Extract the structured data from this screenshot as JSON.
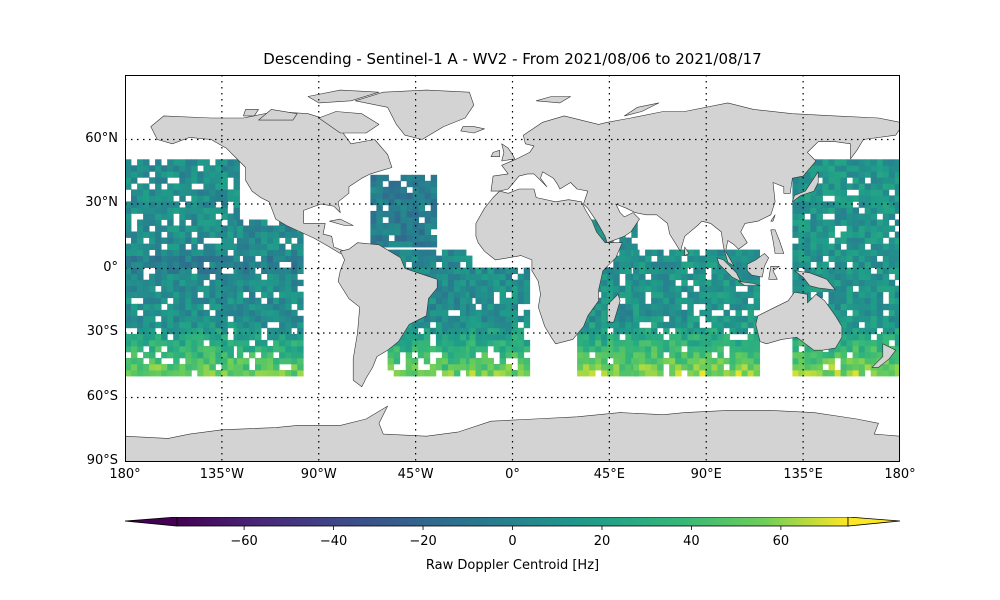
{
  "title": "Descending - Sentinel-1 A - WV2 - From 2021/08/06 to 2021/08/17",
  "map": {
    "projection": "PlateCarree",
    "lon_range": [
      -180,
      180
    ],
    "lat_range": [
      -90,
      90
    ],
    "land_color": "#d3d3d3",
    "coastline_color": "#333333",
    "gridlines": "dotted",
    "lat_ticks": [
      {
        "value": 60,
        "label": "60°N"
      },
      {
        "value": 30,
        "label": "30°N"
      },
      {
        "value": 0,
        "label": "0°"
      },
      {
        "value": -30,
        "label": "30°S"
      },
      {
        "value": -60,
        "label": "60°S"
      },
      {
        "value": -90,
        "label": "90°S"
      }
    ],
    "lon_ticks": [
      {
        "value": -180,
        "label": "180°"
      },
      {
        "value": -135,
        "label": "135°W"
      },
      {
        "value": -90,
        "label": "90°W"
      },
      {
        "value": -45,
        "label": "45°W"
      },
      {
        "value": 0,
        "label": "0°"
      },
      {
        "value": 45,
        "label": "45°E"
      },
      {
        "value": 90,
        "label": "90°E"
      },
      {
        "value": 135,
        "label": "135°E"
      },
      {
        "value": 180,
        "label": "180°"
      }
    ]
  },
  "colorbar": {
    "label": "Raw Doppler Centroid [Hz]",
    "colormap": "viridis",
    "range": [
      -75,
      75
    ],
    "extend": "both",
    "ticks": [
      {
        "value": -60,
        "label": "−60"
      },
      {
        "value": -40,
        "label": "−40"
      },
      {
        "value": -20,
        "label": "−20"
      },
      {
        "value": 0,
        "label": "0"
      },
      {
        "value": 20,
        "label": "20"
      },
      {
        "value": 40,
        "label": "40"
      },
      {
        "value": 60,
        "label": "60"
      }
    ]
  },
  "chart_data": {
    "type": "heatmap",
    "value_range": [
      -75,
      75
    ],
    "coverage": "descending passes over ocean between 50°S and 50°N",
    "regions": [
      {
        "lon": [
          -180,
          -128
        ],
        "lat": [
          -50,
          50
        ],
        "mean_hz": 8,
        "gradient": "south"
      },
      {
        "lon": [
          -128,
          -98
        ],
        "lat": [
          -50,
          20
        ],
        "mean_hz": 6,
        "gradient": "south"
      },
      {
        "lon": [
          -66,
          -37
        ],
        "lat": [
          10,
          42
        ],
        "mean_hz": -4,
        "gradient": "none"
      },
      {
        "lon": [
          -58,
          -20
        ],
        "lat": [
          -50,
          8
        ],
        "mean_hz": 6,
        "gradient": "south"
      },
      {
        "lon": [
          -20,
          8
        ],
        "lat": [
          -50,
          0
        ],
        "mean_hz": 8,
        "gradient": "south"
      },
      {
        "lon": [
          30,
          56
        ],
        "lat": [
          -50,
          20
        ],
        "mean_hz": 10,
        "gradient": "south"
      },
      {
        "lon": [
          56,
          112
        ],
        "lat": [
          -50,
          8
        ],
        "mean_hz": 12,
        "gradient": "south"
      },
      {
        "lon": [
          130,
          180
        ],
        "lat": [
          -50,
          50
        ],
        "mean_hz": 12,
        "gradient": "south"
      }
    ]
  }
}
